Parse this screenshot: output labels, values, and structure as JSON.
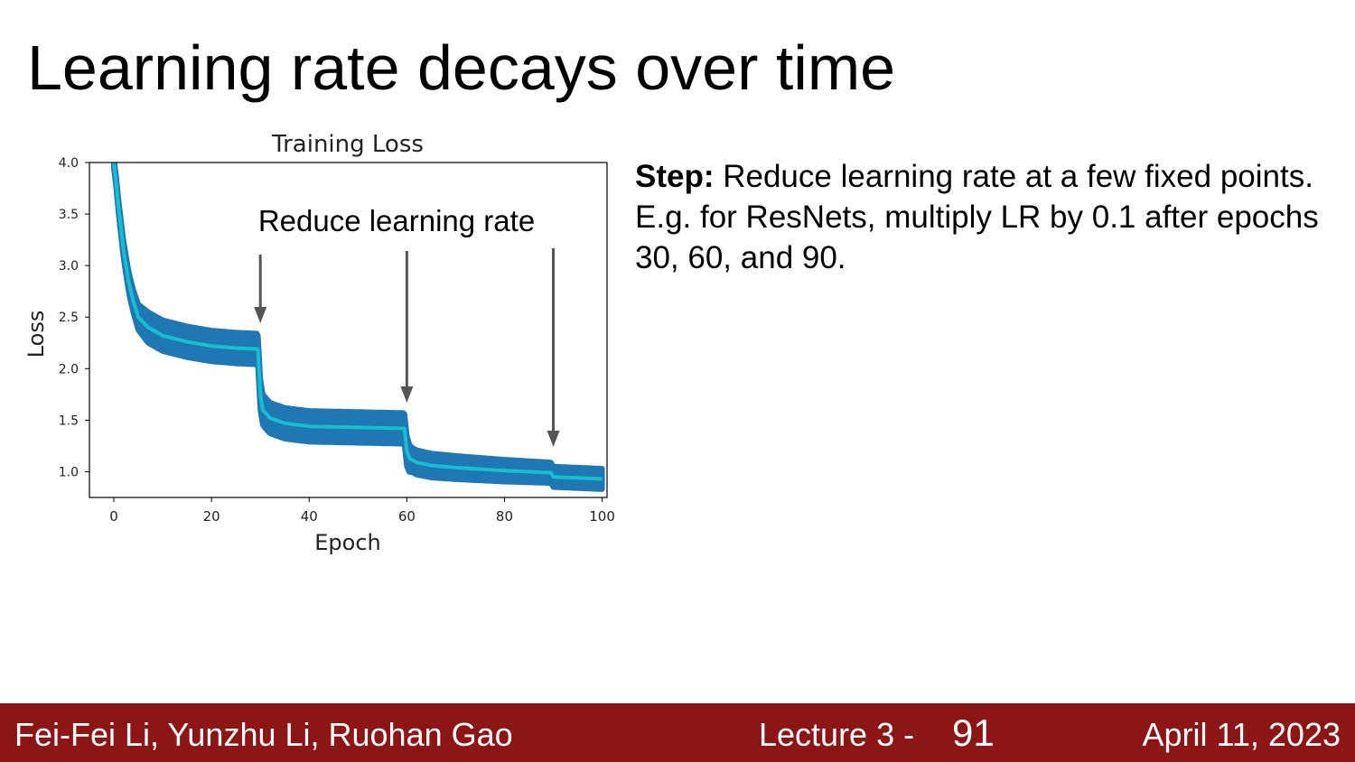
{
  "slide": {
    "title": "Learning rate decays over time",
    "description_bold": "Step:",
    "description_text": " Reduce learning rate at a few fixed points. E.g. for ResNets, multiply LR by 0.1 after epochs 30, 60, and 90."
  },
  "footer": {
    "authors": "Fei-Fei Li, Yunzhu Li, Ruohan Gao",
    "lecture": "Lecture 3 -",
    "page": "91",
    "date": "April 11, 2023"
  },
  "colors": {
    "footer_bg": "#8c1515",
    "noisy_band": "#1f77b4",
    "smoothed_line": "#17becf",
    "arrow": "#555555"
  },
  "chart_data": {
    "type": "line",
    "title": "Training Loss",
    "xlabel": "Epoch",
    "ylabel": "Loss",
    "xlim": [
      -5,
      101
    ],
    "ylim": [
      0.75,
      4.0
    ],
    "xticks": [
      "0",
      "20",
      "40",
      "60",
      "80",
      "100"
    ],
    "yticks": [
      "1.0",
      "1.5",
      "2.0",
      "2.5",
      "3.0",
      "3.5",
      "4.0"
    ],
    "grid": false,
    "annotation": {
      "text": "Reduce learning rate",
      "arrows_at_epochs": [
        30,
        60,
        90
      ]
    },
    "series": [
      {
        "style": "smoothed",
        "x": [
          0,
          0.5,
          1,
          2,
          3,
          4,
          5,
          7,
          10,
          15,
          20,
          25,
          29.5,
          30,
          30.5,
          32,
          35,
          40,
          50,
          59.5,
          60,
          60.5,
          62,
          65,
          70,
          80,
          89.5,
          90,
          95,
          100
        ],
        "y": [
          4.0,
          3.8,
          3.55,
          3.15,
          2.85,
          2.65,
          2.5,
          2.4,
          2.32,
          2.26,
          2.22,
          2.2,
          2.19,
          1.75,
          1.6,
          1.52,
          1.47,
          1.44,
          1.43,
          1.42,
          1.2,
          1.13,
          1.09,
          1.06,
          1.04,
          1.01,
          0.99,
          0.95,
          0.94,
          0.93
        ]
      },
      {
        "style": "noisy_band_half_width",
        "x": [
          0,
          3,
          7,
          10,
          30,
          31,
          60,
          61,
          90,
          100
        ],
        "y": [
          0.05,
          0.1,
          0.15,
          0.15,
          0.15,
          0.15,
          0.15,
          0.12,
          0.1,
          0.1
        ]
      }
    ]
  }
}
